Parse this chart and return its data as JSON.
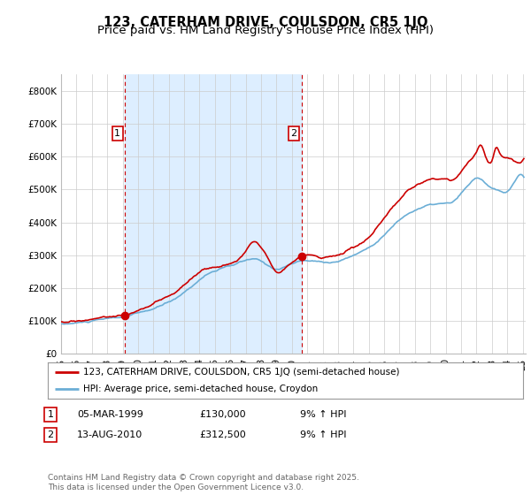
{
  "title": "123, CATERHAM DRIVE, COULSDON, CR5 1JQ",
  "subtitle": "Price paid vs. HM Land Registry's House Price Index (HPI)",
  "ylim": [
    0,
    850000
  ],
  "yticks": [
    0,
    100000,
    200000,
    300000,
    400000,
    500000,
    600000,
    700000,
    800000
  ],
  "ytick_labels": [
    "£0",
    "£100K",
    "£200K",
    "£300K",
    "£400K",
    "£500K",
    "£600K",
    "£700K",
    "£800K"
  ],
  "background_color": "#ffffff",
  "grid_color": "#cccccc",
  "shade_color": "#ddeeff",
  "sale1_x": 1999.17,
  "sale1_price": 130000,
  "sale2_x": 2010.62,
  "sale2_price": 312500,
  "line_color_hpi": "#6baed6",
  "line_color_price": "#cc0000",
  "legend_entry1": "123, CATERHAM DRIVE, COULSDON, CR5 1JQ (semi-detached house)",
  "legend_entry2": "HPI: Average price, semi-detached house, Croydon",
  "table_row1": [
    "1",
    "05-MAR-1999",
    "£130,000",
    "9% ↑ HPI"
  ],
  "table_row2": [
    "2",
    "13-AUG-2010",
    "£312,500",
    "9% ↑ HPI"
  ],
  "footer": "Contains HM Land Registry data © Crown copyright and database right 2025.\nThis data is licensed under the Open Government Licence v3.0.",
  "title_fontsize": 10.5,
  "subtitle_fontsize": 9.5,
  "axis_fontsize": 7.5
}
